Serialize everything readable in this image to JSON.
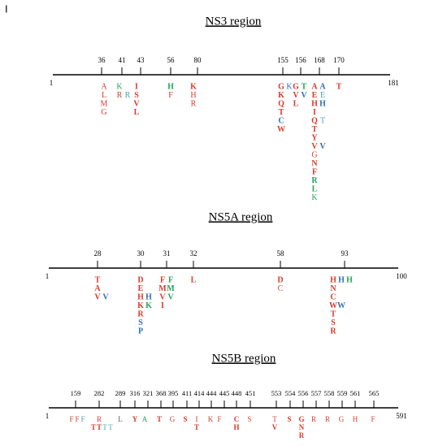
{
  "panel_label": "I",
  "regions": [
    {
      "title": "NS3 region",
      "start": "1",
      "end": "181",
      "positions": [
        {
          "label": "36",
          "columns": [
            [
              {
                "text": "A",
                "color": "#d93a2b",
                "bold": false
              },
              {
                "text": "L",
                "color": "#d93a2b",
                "bold": false
              },
              {
                "text": "M",
                "color": "#d93a2b",
                "bold": false
              },
              {
                "text": "G",
                "color": "#d93a2b",
                "bold": false
              }
            ]
          ]
        },
        {
          "label": "41",
          "columns": [
            [
              {
                "text": "K",
                "color": "#23a35a",
                "bold": false
              },
              {
                "text": "R",
                "color": "#d93a2b",
                "bold": false
              }
            ],
            [
              null,
              {
                "text": "R",
                "color": "#4aa3b5",
                "bold": false
              }
            ]
          ]
        },
        {
          "label": "43",
          "columns": [
            [
              {
                "text": "I",
                "color": "#d93a2b",
                "bold": true
              },
              {
                "text": "S",
                "color": "#d93a2b",
                "bold": true
              },
              {
                "text": "V",
                "color": "#d93a2b",
                "bold": true
              },
              {
                "text": "L",
                "color": "#d93a2b",
                "bold": true
              }
            ]
          ]
        },
        {
          "label": "56",
          "columns": [
            [
              {
                "text": "H",
                "color": "#23a35a",
                "bold": true
              },
              {
                "text": "F",
                "color": "#d93a2b",
                "bold": false
              }
            ]
          ]
        },
        {
          "label": "80",
          "columns": [
            [
              {
                "text": "K",
                "color": "#d93a2b",
                "bold": true
              },
              {
                "text": "H",
                "color": "#d93a2b",
                "bold": false
              },
              {
                "text": "R",
                "color": "#d93a2b",
                "bold": false
              }
            ]
          ]
        },
        {
          "label": "155",
          "columns": [
            [
              {
                "text": "G",
                "color": "#d93a2b",
                "bold": true
              },
              {
                "text": "K",
                "color": "#d93a2b",
                "bold": true
              },
              {
                "text": "Q",
                "color": "#d93a2b",
                "bold": true
              },
              {
                "text": "T",
                "color": "#d93a2b",
                "bold": true
              },
              {
                "text": "C",
                "color": "#2f6fb3",
                "bold": true
              },
              {
                "text": "W",
                "color": "#d93a2b",
                "bold": true
              }
            ],
            [
              {
                "text": "K",
                "color": "#2f6fb3",
                "bold": false
              }
            ]
          ]
        },
        {
          "label": "156",
          "columns": [
            [
              {
                "text": "G",
                "color": "#d93a2b",
                "bold": true
              },
              {
                "text": "V",
                "color": "#d93a2b",
                "bold": true
              },
              {
                "text": "L",
                "color": "#d93a2b",
                "bold": true
              }
            ],
            [
              {
                "text": "T",
                "color": "#23a35a",
                "bold": true
              },
              {
                "text": "V",
                "color": "#2f6fb3",
                "bold": true
              }
            ]
          ]
        },
        {
          "label": "168",
          "columns": [
            [
              {
                "text": "A",
                "color": "#d93a2b",
                "bold": true
              },
              {
                "text": "E",
                "color": "#d93a2b",
                "bold": true
              },
              {
                "text": "H",
                "color": "#d93a2b",
                "bold": true
              },
              {
                "text": "I",
                "color": "#d93a2b",
                "bold": true
              },
              {
                "text": "Q",
                "color": "#d93a2b",
                "bold": true
              },
              {
                "text": "T",
                "color": "#d93a2b",
                "bold": true
              },
              {
                "text": "Y",
                "color": "#d93a2b",
                "bold": true
              },
              {
                "text": "V",
                "color": "#d93a2b",
                "bold": true
              },
              {
                "text": "G",
                "color": "#d93a2b",
                "bold": false
              },
              {
                "text": "N",
                "color": "#d93a2b",
                "bold": true
              },
              {
                "text": "F",
                "color": "#d93a2b",
                "bold": true
              },
              {
                "text": "R",
                "color": "#23a35a",
                "bold": true
              },
              {
                "text": "L",
                "color": "#23a35a",
                "bold": true
              },
              {
                "text": "K",
                "color": "#23a35a",
                "bold": false
              }
            ],
            [
              {
                "text": "A",
                "color": "#2f6fb3",
                "bold": true
              },
              {
                "text": "E",
                "color": "#4aa3b5",
                "bold": false
              },
              {
                "text": "H",
                "color": "#2f6fb3",
                "bold": true
              },
              null,
              {
                "text": "T",
                "color": "#4aa3b5",
                "bold": false
              },
              null,
              null,
              {
                "text": "V",
                "color": "#2f6fb3",
                "bold": true
              }
            ]
          ]
        },
        {
          "label": "170",
          "columns": [
            [
              {
                "text": "T",
                "color": "#d93a2b",
                "bold": true
              }
            ]
          ]
        }
      ]
    },
    {
      "title": "NS5A region",
      "start": "1",
      "end": "100",
      "positions": [
        {
          "label": "28",
          "columns": [
            [
              {
                "text": "T",
                "color": "#d93a2b",
                "bold": true
              },
              {
                "text": "A",
                "color": "#d93a2b",
                "bold": true
              },
              {
                "text": "V",
                "color": "#d93a2b",
                "bold": true
              }
            ],
            [
              null,
              null,
              {
                "text": "V",
                "color": "#2f6fb3",
                "bold": true
              }
            ]
          ]
        },
        {
          "label": "30",
          "columns": [
            [
              {
                "text": "D",
                "color": "#d93a2b",
                "bold": true
              },
              {
                "text": "E",
                "color": "#d93a2b",
                "bold": true
              },
              {
                "text": "H",
                "color": "#d93a2b",
                "bold": true
              },
              {
                "text": "K",
                "color": "#d93a2b",
                "bold": true
              },
              {
                "text": "R",
                "color": "#d93a2b",
                "bold": true
              },
              {
                "text": "S",
                "color": "#2f6fb3",
                "bold": true
              },
              {
                "text": "P",
                "color": "#2f6fb3",
                "bold": true
              }
            ],
            [
              null,
              null,
              {
                "text": "H",
                "color": "#2f6fb3",
                "bold": true
              },
              {
                "text": "K",
                "color": "#23a35a",
                "bold": true
              }
            ]
          ]
        },
        {
          "label": "31",
          "columns": [
            [
              {
                "text": "F",
                "color": "#d93a2b",
                "bold": true
              },
              {
                "text": "M",
                "color": "#d93a2b",
                "bold": true
              },
              {
                "text": "V",
                "color": "#d93a2b",
                "bold": true
              },
              {
                "text": "I",
                "color": "#d93a2b",
                "bold": true
              }
            ],
            [
              {
                "text": "F",
                "color": "#23a35a",
                "bold": true
              },
              {
                "text": "M",
                "color": "#23a35a",
                "bold": true
              },
              {
                "text": "V",
                "color": "#23a35a",
                "bold": true
              }
            ]
          ]
        },
        {
          "label": "32",
          "columns": [
            [
              {
                "text": "L",
                "color": "#d93a2b",
                "bold": true
              }
            ]
          ]
        },
        {
          "label": "58",
          "columns": [
            [
              {
                "text": "D",
                "color": "#d93a2b",
                "bold": true
              },
              {
                "text": "C",
                "color": "#d93a2b",
                "bold": false
              }
            ]
          ]
        },
        {
          "label": "93",
          "columns": [
            [
              {
                "text": "H",
                "color": "#d93a2b",
                "bold": true
              },
              {
                "text": "N",
                "color": "#d93a2b",
                "bold": true
              },
              {
                "text": "C",
                "color": "#d93a2b",
                "bold": true
              },
              {
                "text": "W",
                "color": "#d93a2b",
                "bold": true
              },
              {
                "text": "T",
                "color": "#d93a2b",
                "bold": true
              },
              {
                "text": "S",
                "color": "#d93a2b",
                "bold": true
              },
              {
                "text": "R",
                "color": "#d93a2b",
                "bold": true
              }
            ],
            [
              {
                "text": "H",
                "color": "#2f6fb3",
                "bold": true
              },
              null,
              null,
              {
                "text": "W",
                "color": "#2f6fb3",
                "bold": true
              }
            ],
            [
              {
                "text": "H",
                "color": "#23a35a",
                "bold": true
              }
            ]
          ]
        }
      ]
    },
    {
      "title": "NS5B region",
      "start": "1",
      "end": "591",
      "positions": [
        {
          "label": "159",
          "columns": [
            [
              {
                "text": "F",
                "color": "#d93a2b",
                "bold": false
              }
            ],
            [
              {
                "text": "F",
                "color": "#d93a2b",
                "bold": false
              }
            ],
            [
              {
                "text": "F",
                "color": "#4aa3b5",
                "bold": false
              }
            ]
          ]
        },
        {
          "label": "282",
          "columns": [
            [
              null,
              {
                "text": "T",
                "color": "#d93a2b",
                "bold": true
              }
            ],
            [
              {
                "text": "R",
                "color": "#d93a2b",
                "bold": false
              },
              {
                "text": "T",
                "color": "#d93a2b",
                "bold": true
              }
            ],
            [
              null,
              {
                "text": "T",
                "color": "#4aa3b5",
                "bold": false
              }
            ],
            [
              null,
              {
                "text": "T",
                "color": "#4aa3b5",
                "bold": false
              }
            ]
          ]
        },
        {
          "label": "289",
          "columns": [
            [
              {
                "text": "L",
                "color": "#555555",
                "bold": false
              }
            ]
          ]
        },
        {
          "label": "316",
          "columns": [
            [
              {
                "text": "Y",
                "color": "#d93a2b",
                "bold": true
              }
            ]
          ]
        },
        {
          "label": "321",
          "columns": [
            [
              {
                "text": "A",
                "color": "#23a35a",
                "bold": false
              }
            ]
          ]
        },
        {
          "label": "368",
          "columns": [
            [
              {
                "text": "T",
                "color": "#d93a2b",
                "bold": true
              }
            ]
          ]
        },
        {
          "label": "395",
          "columns": [
            [
              {
                "text": "G",
                "color": "#d93a2b",
                "bold": false
              }
            ]
          ]
        },
        {
          "label": "411",
          "columns": [
            [
              {
                "text": "S",
                "color": "#d93a2b",
                "bold": true
              }
            ]
          ]
        },
        {
          "label": "414",
          "columns": [
            [
              {
                "text": "I",
                "color": "#d93a2b",
                "bold": false
              },
              {
                "text": "T",
                "color": "#d93a2b",
                "bold": true
              }
            ]
          ]
        },
        {
          "label": "444",
          "columns": [
            [
              {
                "text": "K",
                "color": "#d93a2b",
                "bold": false
              }
            ]
          ]
        },
        {
          "label": "445",
          "columns": [
            [
              {
                "text": "F",
                "color": "#d93a2b",
                "bold": false
              }
            ]
          ]
        },
        {
          "label": "448",
          "columns": [
            [
              {
                "text": "C",
                "color": "#d93a2b",
                "bold": true
              },
              {
                "text": "H",
                "color": "#d93a2b",
                "bold": true
              }
            ]
          ]
        },
        {
          "label": "451",
          "columns": [
            [
              {
                "text": "S",
                "color": "#d93a2b",
                "bold": false
              }
            ]
          ]
        },
        {
          "label": "553",
          "columns": [
            [
              {
                "text": "T",
                "color": "#d93a2b",
                "bold": false
              },
              {
                "text": "V",
                "color": "#d93a2b",
                "bold": true
              }
            ]
          ]
        },
        {
          "label": "554",
          "columns": [
            [
              {
                "text": "S",
                "color": "#d93a2b",
                "bold": true
              }
            ]
          ]
        },
        {
          "label": "556",
          "columns": [
            [
              {
                "text": "G",
                "color": "#d93a2b",
                "bold": true
              },
              {
                "text": "N",
                "color": "#d93a2b",
                "bold": true
              },
              {
                "text": "R",
                "color": "#d93a2b",
                "bold": true
              }
            ]
          ]
        },
        {
          "label": "557",
          "columns": [
            [
              {
                "text": "R",
                "color": "#d93a2b",
                "bold": false
              }
            ]
          ]
        },
        {
          "label": "558",
          "columns": [
            [
              {
                "text": "R",
                "color": "#d93a2b",
                "bold": false
              }
            ]
          ]
        },
        {
          "label": "559",
          "columns": [
            [
              {
                "text": "G",
                "color": "#d93a2b",
                "bold": false
              }
            ]
          ]
        },
        {
          "label": "561",
          "columns": [
            [
              {
                "text": "H",
                "color": "#d93a2b",
                "bold": false
              }
            ]
          ]
        },
        {
          "label": "565",
          "columns": [
            [
              {
                "text": "F",
                "color": "#d93a2b",
                "bold": false
              }
            ]
          ]
        }
      ]
    }
  ]
}
